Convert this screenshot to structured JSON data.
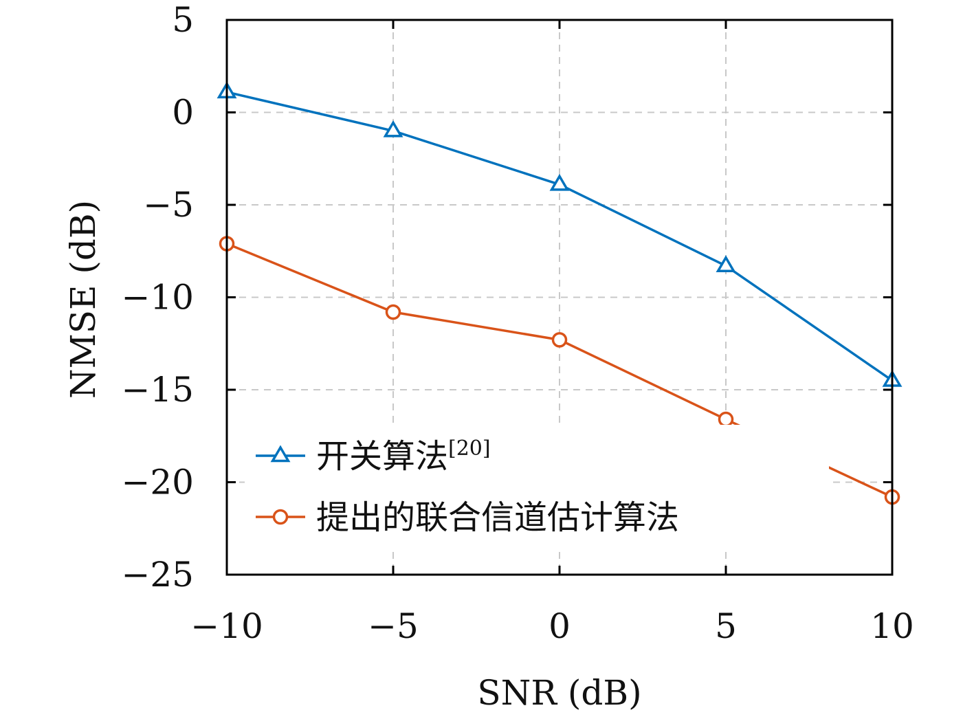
{
  "chart_data": {
    "type": "line",
    "title": "",
    "xlabel": "SNR (dB)",
    "ylabel": "NMSE (dB)",
    "x": [
      -10,
      -5,
      0,
      5,
      10
    ],
    "xlim": [
      -10,
      10
    ],
    "ylim": [
      -25,
      5
    ],
    "xticks": [
      -10,
      -5,
      0,
      5,
      10
    ],
    "yticks": [
      5,
      0,
      -5,
      -10,
      -15,
      -20,
      -25
    ],
    "xtick_labels": [
      "−10",
      "−5",
      "0",
      "5",
      "10"
    ],
    "ytick_labels": [
      "5",
      "0",
      "−5",
      "−10",
      "−15",
      "−20",
      "−25"
    ],
    "grid": true,
    "legend_position": "bottom-left",
    "series": [
      {
        "name": "开关算法",
        "name_ref": "[20]",
        "marker": "triangle",
        "color": "#0072BD",
        "values": [
          1.1,
          -1.0,
          -3.9,
          -8.3,
          -14.5
        ]
      },
      {
        "name": "提出的联合信道估计算法",
        "marker": "circle",
        "color": "#D95319",
        "values": [
          -7.1,
          -10.8,
          -12.3,
          -16.6,
          -20.8
        ]
      }
    ]
  }
}
